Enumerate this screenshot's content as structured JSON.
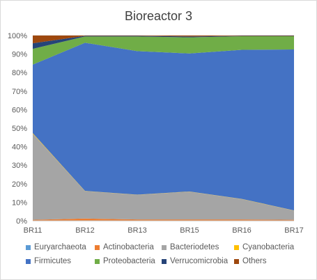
{
  "chart_data": {
    "type": "area",
    "stacked": "percent",
    "title": "Bioreactor 3",
    "xlabel": "",
    "ylabel": "",
    "x": [
      "BR11",
      "BR12",
      "BR13",
      "BR15",
      "BR16",
      "BR17"
    ],
    "ylim": [
      0,
      100
    ],
    "yticks": [
      "0%",
      "10%",
      "20%",
      "30%",
      "40%",
      "50%",
      "60%",
      "70%",
      "80%",
      "90%",
      "100%"
    ],
    "grid": true,
    "legend_position": "bottom",
    "series": [
      {
        "name": "Euryarchaeota",
        "color": "#5b9bd5",
        "values": [
          0.2,
          0.2,
          0.2,
          0.2,
          0.2,
          0.2
        ]
      },
      {
        "name": "Actinobacteria",
        "color": "#ed7d31",
        "values": [
          0.3,
          1.0,
          0.5,
          0.5,
          0.5,
          0.3
        ]
      },
      {
        "name": "Bacteriodetes",
        "color": "#a5a5a5",
        "values": [
          46.5,
          14.8,
          13.3,
          15.0,
          11.0,
          5.0
        ]
      },
      {
        "name": "Cyanobacteria",
        "color": "#ffc000",
        "values": [
          0.3,
          0.1,
          0.1,
          0.1,
          0.1,
          0.1
        ]
      },
      {
        "name": "Firmicutes",
        "color": "#4472c4",
        "values": [
          37.0,
          80.0,
          77.5,
          74.5,
          80.5,
          86.9
        ]
      },
      {
        "name": "Proteobacteria",
        "color": "#70ad47",
        "values": [
          8.5,
          3.4,
          7.9,
          8.7,
          7.3,
          7.1
        ]
      },
      {
        "name": "Verrucomicrobia",
        "color": "#264478",
        "values": [
          3.0,
          0.3,
          0.3,
          0.5,
          0.2,
          0.2
        ]
      },
      {
        "name": "Others",
        "color": "#9e480e",
        "values": [
          4.2,
          0.2,
          0.2,
          0.5,
          0.2,
          0.2
        ]
      }
    ]
  }
}
